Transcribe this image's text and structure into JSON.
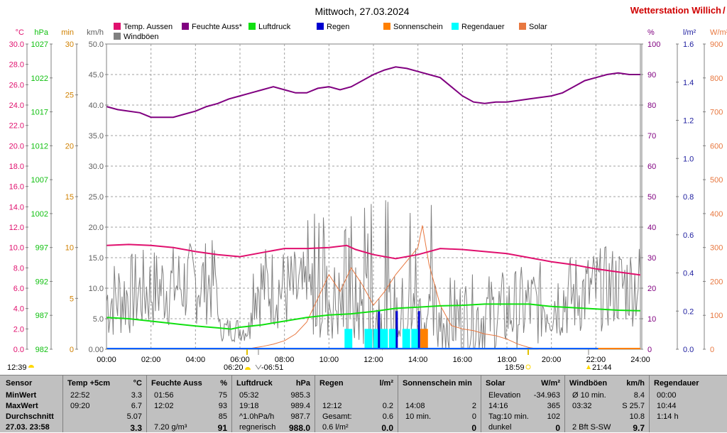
{
  "station_title": "Wetterstation Willich",
  "chart_data": {
    "type": "line",
    "title": "Mittwoch, 27.03.2024",
    "x_ticks": [
      "00:00",
      "02:00",
      "04:00",
      "06:00",
      "08:00",
      "10:00",
      "12:00",
      "14:00",
      "16:00",
      "18:00",
      "20:00",
      "22:00",
      "24:00"
    ],
    "x_range_hours": [
      0,
      24
    ],
    "grid": true,
    "legend_position": "top",
    "legend": [
      {
        "name": "Temp. Aussen",
        "color": "#e0106e"
      },
      {
        "name": "Feuchte Auss*",
        "color": "#800080"
      },
      {
        "name": "Luftdruck",
        "color": "#10e010"
      },
      {
        "name": "Regen",
        "color": "#0000d0"
      },
      {
        "name": "Sonnenschein",
        "color": "#ff8000"
      },
      {
        "name": "Regendauer",
        "color": "#00ffff"
      },
      {
        "name": "Solar",
        "color": "#e87840"
      },
      {
        "name": "Windböen",
        "color": "#808080"
      }
    ],
    "axes_left": [
      {
        "unit": "°C",
        "color": "#e0106e",
        "ticks": [
          "30.0",
          "28.0",
          "26.0",
          "24.0",
          "22.0",
          "20.0",
          "18.0",
          "16.0",
          "14.0",
          "12.0",
          "10.0",
          "8.0",
          "6.0",
          "4.0",
          "2.0",
          "0.0"
        ]
      },
      {
        "unit": "hPa",
        "color": "#10c010",
        "ticks": [
          "1027",
          "1022",
          "1017",
          "1012",
          "1007",
          "1002",
          "997",
          "992",
          "987",
          "982"
        ]
      },
      {
        "unit": "min",
        "color": "#d08000",
        "ticks": [
          "30",
          "25",
          "20",
          "15",
          "10",
          "5",
          "0"
        ]
      },
      {
        "unit": "km/h",
        "color": "#606060",
        "ticks": [
          "50.0",
          "45.0",
          "40.0",
          "35.0",
          "30.0",
          "25.0",
          "20.0",
          "15.0",
          "10.0",
          "5.0",
          "0.00"
        ]
      }
    ],
    "axes_right": [
      {
        "unit": "%",
        "color": "#800080",
        "ticks": [
          "100",
          "90",
          "80",
          "70",
          "60",
          "50",
          "40",
          "30",
          "20",
          "10",
          "0"
        ]
      },
      {
        "unit": "l/m²",
        "color": "#2020a0",
        "ticks": [
          "1.6",
          "1.4",
          "1.2",
          "1.0",
          "0.8",
          "0.6",
          "0.4",
          "0.2",
          "0.0"
        ]
      },
      {
        "unit": "W/m²",
        "color": "#e87840",
        "ticks": [
          "900",
          "800",
          "700",
          "600",
          "500",
          "400",
          "300",
          "200",
          "100",
          "0"
        ]
      }
    ],
    "series": [
      {
        "name": "Feuchte Auss*",
        "axis": "%",
        "color": "#800080",
        "points": [
          [
            0,
            79.5
          ],
          [
            0.5,
            78.5
          ],
          [
            1,
            78
          ],
          [
            1.5,
            77.5
          ],
          [
            2,
            76
          ],
          [
            3,
            76
          ],
          [
            3.5,
            77
          ],
          [
            4,
            78
          ],
          [
            4.5,
            79.5
          ],
          [
            5,
            80.5
          ],
          [
            5.5,
            82
          ],
          [
            6,
            83
          ],
          [
            6.5,
            84
          ],
          [
            7,
            85
          ],
          [
            7.5,
            86
          ],
          [
            8,
            85
          ],
          [
            8.5,
            84
          ],
          [
            9,
            84
          ],
          [
            9.5,
            85.5
          ],
          [
            10,
            86
          ],
          [
            10.5,
            85
          ],
          [
            11,
            86
          ],
          [
            11.5,
            88
          ],
          [
            12,
            90
          ],
          [
            12.5,
            91.5
          ],
          [
            13,
            92.5
          ],
          [
            13.5,
            92
          ],
          [
            14,
            91
          ],
          [
            14.5,
            90
          ],
          [
            15,
            89
          ],
          [
            15.5,
            86
          ],
          [
            16,
            83
          ],
          [
            16.5,
            81
          ],
          [
            17,
            80.5
          ],
          [
            17.5,
            81
          ],
          [
            18,
            81
          ],
          [
            18.5,
            81.5
          ],
          [
            19,
            82
          ],
          [
            19.5,
            82.5
          ],
          [
            20,
            83
          ],
          [
            20.5,
            84
          ],
          [
            21,
            86
          ],
          [
            21.5,
            88
          ],
          [
            22,
            89
          ],
          [
            22.5,
            90
          ],
          [
            23,
            90.5
          ],
          [
            23.5,
            90
          ],
          [
            24,
            90
          ]
        ]
      },
      {
        "name": "Temp. Aussen",
        "axis": "°C",
        "color": "#e0106e",
        "points": [
          [
            0,
            10.2
          ],
          [
            1,
            10.3
          ],
          [
            2,
            10.2
          ],
          [
            3,
            10.0
          ],
          [
            4,
            9.6
          ],
          [
            5,
            9.3
          ],
          [
            6,
            9.1
          ],
          [
            7,
            9.5
          ],
          [
            8,
            9.9
          ],
          [
            9,
            9.9
          ],
          [
            10,
            10.0
          ],
          [
            10.8,
            10.2
          ],
          [
            11.2,
            9.8
          ],
          [
            12,
            9.3
          ],
          [
            13,
            8.9
          ],
          [
            14,
            9.3
          ],
          [
            15,
            9.9
          ],
          [
            16,
            9.8
          ],
          [
            17,
            9.6
          ],
          [
            18,
            9.4
          ],
          [
            19,
            9.0
          ],
          [
            20,
            8.6
          ],
          [
            21,
            8.3
          ],
          [
            22,
            7.9
          ],
          [
            23,
            7.6
          ],
          [
            24,
            7.3
          ]
        ]
      },
      {
        "name": "Luftdruck",
        "axis": "hPa",
        "color": "#10e010",
        "points": [
          [
            0,
            987.2
          ],
          [
            1,
            987.0
          ],
          [
            2,
            986.6
          ],
          [
            3,
            986.2
          ],
          [
            4,
            985.8
          ],
          [
            5,
            985.5
          ],
          [
            5.6,
            985.3
          ],
          [
            6,
            985.6
          ],
          [
            7,
            986.0
          ],
          [
            8,
            986.6
          ],
          [
            9,
            987.2
          ],
          [
            10,
            987.6
          ],
          [
            11,
            987.8
          ],
          [
            12,
            988.2
          ],
          [
            13,
            988.7
          ],
          [
            14,
            988.9
          ],
          [
            15,
            989.1
          ],
          [
            16,
            989.2
          ],
          [
            17,
            989.4
          ],
          [
            18,
            989.4
          ],
          [
            19,
            989.4
          ],
          [
            20,
            989.0
          ],
          [
            21,
            988.8
          ],
          [
            22,
            988.6
          ],
          [
            23,
            988.4
          ],
          [
            24,
            988.3
          ]
        ]
      },
      {
        "name": "Windböen",
        "axis": "km/h",
        "color": "#808080",
        "max": 25.7
      },
      {
        "name": "Solar",
        "axis": "W/m²",
        "color": "#e87840",
        "points": [
          [
            6,
            0
          ],
          [
            6.5,
            3
          ],
          [
            7,
            8
          ],
          [
            7.5,
            15
          ],
          [
            8,
            25
          ],
          [
            8.5,
            45
          ],
          [
            9,
            80
          ],
          [
            9.5,
            150
          ],
          [
            10,
            220
          ],
          [
            10.5,
            170
          ],
          [
            11,
            240
          ],
          [
            11.5,
            190
          ],
          [
            12,
            130
          ],
          [
            12.5,
            170
          ],
          [
            13,
            220
          ],
          [
            13.5,
            260
          ],
          [
            14,
            300
          ],
          [
            14.2,
            365
          ],
          [
            14.5,
            250
          ],
          [
            15,
            130
          ],
          [
            15.5,
            70
          ],
          [
            16,
            60
          ],
          [
            16.5,
            55
          ],
          [
            17,
            45
          ],
          [
            17.5,
            40
          ],
          [
            18,
            30
          ],
          [
            18.5,
            15
          ],
          [
            19,
            5
          ],
          [
            19.5,
            0
          ]
        ]
      },
      {
        "name": "Regen",
        "axis": "l/m²",
        "color": "#0000d0",
        "bars": [
          [
            12.2,
            0.2
          ],
          [
            13,
            0.2
          ],
          [
            14,
            0.2
          ]
        ]
      },
      {
        "name": "Regendauer",
        "axis": "min",
        "color": "#00ffff",
        "bars": [
          [
            10.7,
            2
          ],
          [
            11.6,
            2
          ],
          [
            12,
            2
          ],
          [
            12.3,
            2
          ],
          [
            12.7,
            2
          ],
          [
            13.3,
            2
          ],
          [
            13.7,
            2
          ]
        ]
      },
      {
        "name": "Sonnenschein",
        "axis": "min",
        "color": "#ff8000",
        "bars": [
          [
            14.1,
            2
          ]
        ]
      }
    ],
    "events": {
      "left_time": "12:39",
      "sunrise": "06:20",
      "sunrise_icon": "sun-icon",
      "moon": "06:51",
      "moon_icon": "moon-icon",
      "sunset": "18:59",
      "moon2": "21:44",
      "moon2_icon": "moon-icon"
    }
  },
  "stats": {
    "rows": [
      "Sensor",
      "MinWert",
      "MaxWert",
      "Durchschnitt",
      "27.03. 23:58"
    ],
    "columns": [
      {
        "h1": "Temp +5cm",
        "h2": "°C",
        "cells": [
          [
            "22:52",
            "3.3"
          ],
          [
            "09:20",
            "6.7"
          ],
          [
            "",
            "5.07"
          ],
          [
            "",
            "3.3"
          ]
        ]
      },
      {
        "h1": "Feuchte Auss",
        "h2": "%",
        "cells": [
          [
            "01:56",
            "75"
          ],
          [
            "12:02",
            "93"
          ],
          [
            "",
            "85"
          ],
          [
            "7.20 g/m³",
            "91"
          ]
        ]
      },
      {
        "h1": "Luftdruck",
        "h2": "hPa",
        "cells": [
          [
            "05:32",
            "985.3"
          ],
          [
            "19:18",
            "989.4"
          ],
          [
            "^1.0hPa/h",
            "987.7"
          ],
          [
            "regnerisch",
            "988.0"
          ]
        ]
      },
      {
        "h1": "Regen",
        "h2": "l/m²",
        "cells": [
          [
            "",
            ""
          ],
          [
            "12:12",
            "0.2"
          ],
          [
            "Gesamt:",
            "0.6"
          ],
          [
            "0.6 l/m²",
            "0.0"
          ]
        ]
      },
      {
        "h1": "Sonnenschein min",
        "h2": "",
        "cells": [
          [
            "",
            ""
          ],
          [
            "14:08",
            "2"
          ],
          [
            "10 min.",
            "0"
          ],
          [
            "",
            "0"
          ]
        ]
      },
      {
        "h1": "Solar",
        "h2": "W/m²",
        "cells": [
          [
            "Elevation",
            "-34.963"
          ],
          [
            "14:16",
            "365"
          ],
          [
            "Tag:10 min.",
            "102"
          ],
          [
            "dunkel",
            "0"
          ]
        ]
      },
      {
        "h1": "Windböen",
        "h2": "km/h",
        "cells": [
          [
            "Ø 10 min.",
            "8.4"
          ],
          [
            "03:32",
            "S 25.7"
          ],
          [
            "",
            "10.8"
          ],
          [
            "2 Bft S-SW",
            "9.7"
          ]
        ]
      },
      {
        "h1": "Regendauer",
        "h2": "",
        "cells": [
          [
            "00:00",
            ""
          ],
          [
            "10:44",
            ""
          ],
          [
            "1:14 h",
            ""
          ],
          [
            "",
            ""
          ]
        ]
      }
    ]
  }
}
